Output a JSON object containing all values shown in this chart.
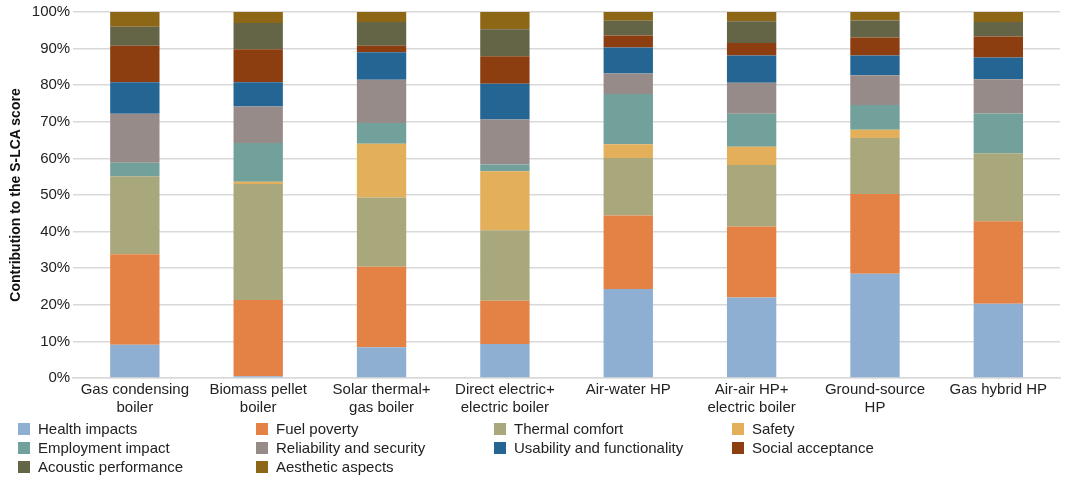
{
  "chart_data": {
    "type": "bar",
    "stacked": true,
    "ylabel": "Contribution to the S-LCA score",
    "categories": [
      "Gas condensing boiler",
      "Biomass pellet boiler",
      "Solar thermal+ gas boiler",
      "Direct electric+ electric boiler",
      "Air-water HP",
      "Air-air HP+ electric boiler",
      "Ground-source HP",
      "Gas hybrid HP"
    ],
    "series": [
      {
        "name": "Health impacts",
        "color": "#8eafd2",
        "values": [
          9.1,
          0.5,
          8.4,
          9.3,
          24.3,
          22.0,
          28.5,
          20.3
        ]
      },
      {
        "name": "Fuel poverty",
        "color": "#e48145",
        "values": [
          24.7,
          20.8,
          22.0,
          11.8,
          20.1,
          19.4,
          21.8,
          22.5
        ]
      },
      {
        "name": "Thermal comfort",
        "color": "#a8a87c",
        "values": [
          21.3,
          31.7,
          18.9,
          19.3,
          15.7,
          16.8,
          15.3,
          18.6
        ]
      },
      {
        "name": "Safety",
        "color": "#e4af5a",
        "values": [
          0,
          0.6,
          14.7,
          16.1,
          3.8,
          5.0,
          2.2,
          0
        ]
      },
      {
        "name": "Employment impact",
        "color": "#72a09a",
        "values": [
          3.7,
          10.6,
          5.7,
          1.8,
          13.7,
          9.0,
          6.8,
          10.9
        ]
      },
      {
        "name": "Reliability and security",
        "color": "#978b89",
        "values": [
          13.4,
          10.0,
          11.8,
          12.3,
          5.6,
          8.5,
          8.1,
          9.3
        ]
      },
      {
        "name": "Usability and functionality",
        "color": "#246594",
        "values": [
          8.6,
          6.6,
          7.5,
          9.8,
          7.1,
          7.4,
          5.4,
          6.0
        ]
      },
      {
        "name": "Social acceptance",
        "color": "#8d3e10",
        "values": [
          10.0,
          9.0,
          1.8,
          7.5,
          3.3,
          3.4,
          4.9,
          5.7
        ]
      },
      {
        "name": "Acoustic performance",
        "color": "#646547",
        "values": [
          5.2,
          7.2,
          6.5,
          7.4,
          4.0,
          6.0,
          4.7,
          4.0
        ]
      },
      {
        "name": "Aesthetic aspects",
        "color": "#8e6716",
        "values": [
          4.0,
          3.0,
          2.7,
          4.7,
          2.4,
          2.5,
          2.3,
          2.7
        ]
      }
    ],
    "ylim": [
      0,
      100
    ],
    "yticks": [
      {
        "value": 0,
        "label": "0%"
      },
      {
        "value": 10,
        "label": "10%"
      },
      {
        "value": 20,
        "label": "20%"
      },
      {
        "value": 30,
        "label": "30%"
      },
      {
        "value": 40,
        "label": "40%"
      },
      {
        "value": 50,
        "label": "50%"
      },
      {
        "value": 60,
        "label": "60%"
      },
      {
        "value": 70,
        "label": "70%"
      },
      {
        "value": 80,
        "label": "80%"
      },
      {
        "value": 90,
        "label": "90%"
      },
      {
        "value": 100,
        "label": "100%"
      }
    ],
    "grid": "y",
    "legend": "bottom"
  }
}
